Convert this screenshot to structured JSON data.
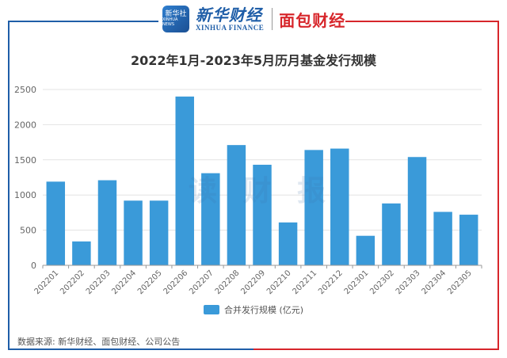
{
  "header": {
    "badge_line1": "新华社",
    "badge_line2": "XINHUA NEWS",
    "brand_cn": "新华财经",
    "brand_en": "XINHUA FINANCE",
    "partner": "面包财经"
  },
  "colors": {
    "bar": "#3a9ad9",
    "accent_blue": "#1f5ea8",
    "accent_red": "#d7262b"
  },
  "watermark": "读 财 报",
  "source": "数据来源: 新华财经、面包财经、公司公告",
  "chart_data": {
    "type": "bar",
    "title": "2022年1月-2023年5月历月基金发行规模",
    "categories": [
      "202201",
      "202202",
      "202203",
      "202204",
      "202205",
      "202206",
      "202207",
      "202208",
      "202209",
      "202210",
      "202211",
      "202212",
      "202301",
      "202302",
      "202303",
      "202304",
      "202305"
    ],
    "series": [
      {
        "name": "合并发行规模 (亿元)",
        "values": [
          1190,
          340,
          1210,
          920,
          920,
          2400,
          1310,
          1710,
          1430,
          610,
          1640,
          1660,
          420,
          880,
          1540,
          760,
          720
        ]
      }
    ],
    "ylim": [
      0,
      2500
    ],
    "yticks": [
      "0",
      "500",
      "1000",
      "1500",
      "2000",
      "2500"
    ],
    "grid": true,
    "legend": "bottom-center"
  }
}
